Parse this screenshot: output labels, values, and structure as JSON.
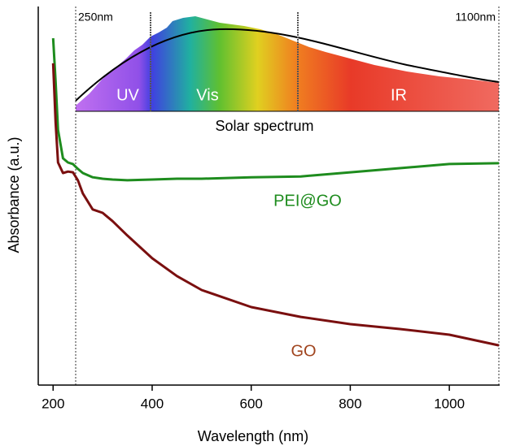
{
  "chart_data": {
    "type": "line",
    "x_label": "Wavelength (nm)",
    "y_label": "Absorbance (a.u.)",
    "xlim": [
      170,
      1100
    ],
    "ylim": [
      0,
      1
    ],
    "xticks": [
      200,
      400,
      600,
      800,
      1000
    ],
    "x": [
      200,
      205,
      210,
      220,
      230,
      240,
      250,
      260,
      280,
      300,
      320,
      350,
      400,
      450,
      500,
      600,
      700,
      800,
      900,
      1000,
      1100
    ],
    "series": [
      {
        "name": "PEI@GO",
        "color": "#1e8c1e",
        "values": [
          0.916,
          0.803,
          0.674,
          0.599,
          0.588,
          0.584,
          0.571,
          0.56,
          0.549,
          0.545,
          0.543,
          0.541,
          0.543,
          0.545,
          0.545,
          0.549,
          0.551,
          0.562,
          0.573,
          0.584,
          0.586
        ]
      },
      {
        "name": "GO",
        "color": "#7a0f0f",
        "values": [
          0.85,
          0.695,
          0.588,
          0.56,
          0.564,
          0.562,
          0.541,
          0.506,
          0.464,
          0.455,
          0.433,
          0.395,
          0.335,
          0.288,
          0.251,
          0.206,
          0.18,
          0.161,
          0.148,
          0.133,
          0.105
        ]
      }
    ],
    "inset": {
      "title": "Solar spectrum",
      "left_label": "250nm",
      "right_label": "1100nm",
      "regions": [
        "UV",
        "Vis",
        "IR"
      ]
    }
  }
}
